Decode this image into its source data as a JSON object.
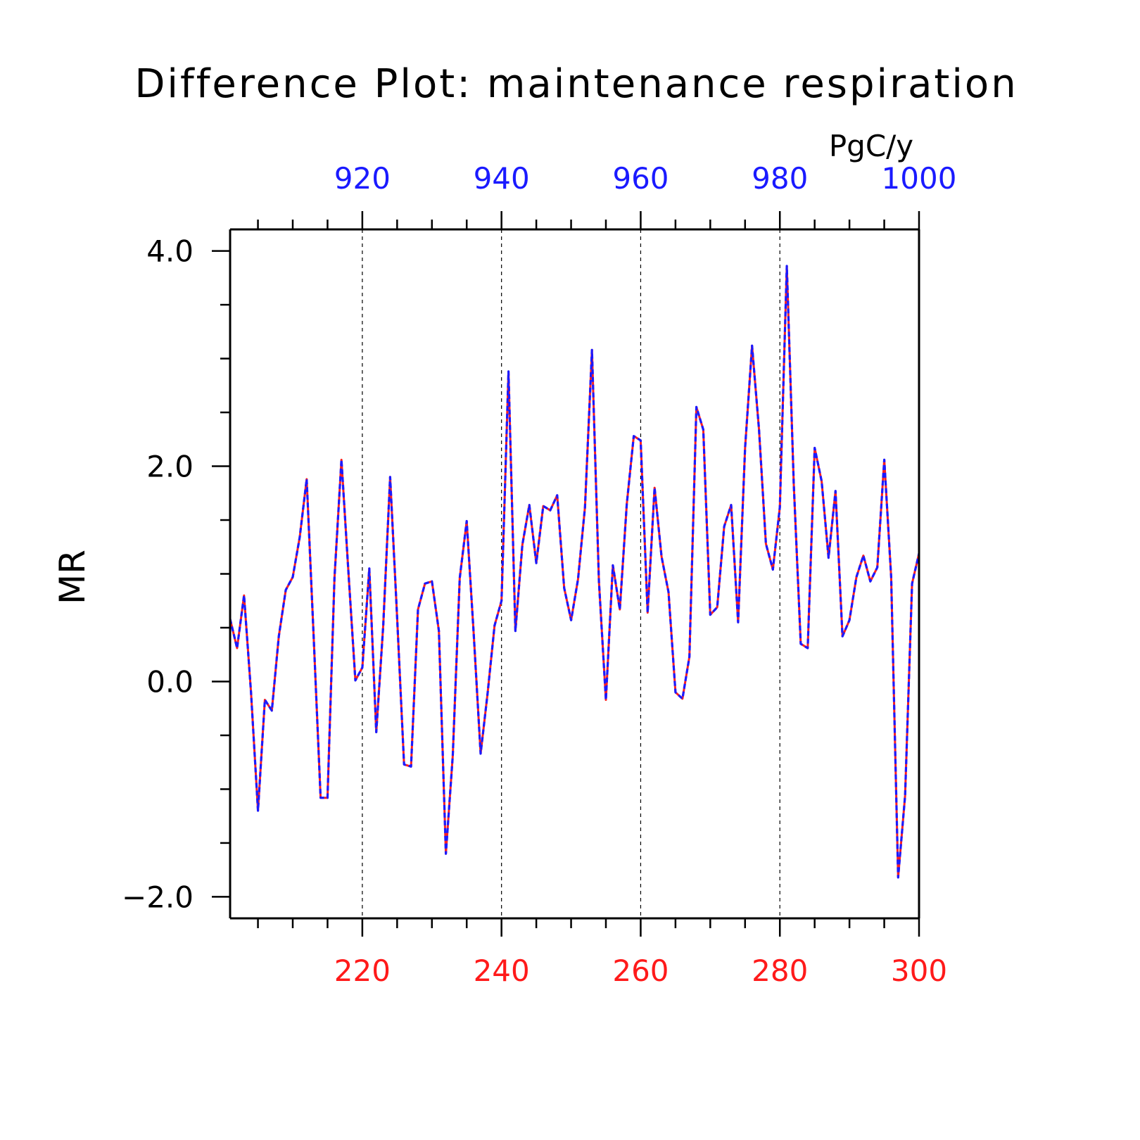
{
  "chart_data": {
    "type": "line",
    "title": "Difference Plot: maintenance respiration",
    "units": "PgC/y",
    "ylabel": "MR",
    "ylim": [
      -2.2,
      4.2
    ],
    "y_major_ticks": [
      -2.0,
      0.0,
      2.0,
      4.0
    ],
    "y_tick_labels": [
      "−2.0",
      "0.0",
      "2.0",
      "4.0"
    ],
    "y_minor_step": 0.5,
    "x_bottom": {
      "range": [
        201,
        300
      ],
      "ticks": [
        220,
        240,
        260,
        280,
        300
      ],
      "tick_labels": [
        "220",
        "240",
        "260",
        "280",
        "300"
      ],
      "minor_step": 5,
      "color": "#ff1a1a"
    },
    "x_top": {
      "range": [
        901,
        1000
      ],
      "ticks": [
        920,
        940,
        960,
        980,
        1000
      ],
      "tick_labels": [
        "920",
        "940",
        "960",
        "980",
        "1000"
      ],
      "minor_step": 5,
      "color": "#1a1aff"
    },
    "grid": "vertical dashed at major x ticks",
    "x": [
      201,
      202,
      203,
      204,
      205,
      206,
      207,
      208,
      209,
      210,
      211,
      212,
      213,
      214,
      215,
      216,
      217,
      218,
      219,
      220,
      221,
      222,
      223,
      224,
      225,
      226,
      227,
      228,
      229,
      230,
      231,
      232,
      233,
      234,
      235,
      236,
      237,
      238,
      239,
      240,
      241,
      242,
      243,
      244,
      245,
      246,
      247,
      248,
      249,
      250,
      251,
      252,
      253,
      254,
      255,
      256,
      257,
      258,
      259,
      260,
      261,
      262,
      263,
      264,
      265,
      266,
      267,
      268,
      269,
      270,
      271,
      272,
      273,
      274,
      275,
      276,
      277,
      278,
      279,
      280,
      281,
      282,
      283,
      284,
      285,
      286,
      287,
      288,
      289,
      290,
      291,
      292,
      293,
      294,
      295,
      296,
      297,
      298,
      299,
      300
    ],
    "series": [
      {
        "color": "#ff2020",
        "style": "solid",
        "values": [
          0.58,
          0.31,
          0.8,
          -0.1,
          -1.2,
          -0.17,
          -0.27,
          0.42,
          0.85,
          0.97,
          1.34,
          1.88,
          0.42,
          -1.08,
          -1.08,
          0.96,
          2.06,
          1.02,
          0.01,
          0.13,
          1.05,
          -0.47,
          0.52,
          1.9,
          0.6,
          -0.77,
          -0.79,
          0.67,
          0.91,
          0.93,
          0.47,
          -1.6,
          -0.69,
          0.96,
          1.49,
          0.45,
          -0.67,
          -0.11,
          0.52,
          0.75,
          2.88,
          0.47,
          1.27,
          1.64,
          1.1,
          1.63,
          1.59,
          1.73,
          0.87,
          0.57,
          0.95,
          1.62,
          3.08,
          0.93,
          -0.17,
          1.08,
          0.67,
          1.65,
          2.28,
          2.24,
          0.64,
          1.8,
          1.16,
          0.83,
          -0.1,
          -0.16,
          0.23,
          2.55,
          2.34,
          0.62,
          0.69,
          1.44,
          1.64,
          0.55,
          2.17,
          3.12,
          2.34,
          1.28,
          1.04,
          1.62,
          3.86,
          1.83,
          0.35,
          0.31,
          2.17,
          1.86,
          1.15,
          1.77,
          0.42,
          0.57,
          0.97,
          1.17,
          0.93,
          1.06,
          2.06,
          0.97,
          -1.82,
          -1.06,
          0.91,
          1.19
        ]
      },
      {
        "color": "#1a1aff",
        "style": "dashed",
        "values": [
          0.58,
          0.31,
          0.8,
          -0.1,
          -1.2,
          -0.17,
          -0.27,
          0.42,
          0.85,
          0.97,
          1.34,
          1.88,
          0.42,
          -1.08,
          -1.08,
          0.96,
          2.06,
          1.02,
          0.01,
          0.13,
          1.05,
          -0.47,
          0.52,
          1.9,
          0.6,
          -0.77,
          -0.79,
          0.67,
          0.91,
          0.93,
          0.47,
          -1.6,
          -0.69,
          0.96,
          1.49,
          0.45,
          -0.67,
          -0.11,
          0.52,
          0.75,
          2.88,
          0.47,
          1.27,
          1.64,
          1.1,
          1.63,
          1.59,
          1.73,
          0.87,
          0.57,
          0.95,
          1.62,
          3.08,
          0.93,
          -0.17,
          1.08,
          0.67,
          1.65,
          2.28,
          2.24,
          0.64,
          1.8,
          1.16,
          0.83,
          -0.1,
          -0.16,
          0.23,
          2.55,
          2.34,
          0.62,
          0.69,
          1.44,
          1.64,
          0.55,
          2.17,
          3.12,
          2.34,
          1.28,
          1.04,
          1.62,
          3.86,
          1.83,
          0.35,
          0.31,
          2.17,
          1.86,
          1.15,
          1.77,
          0.42,
          0.57,
          0.97,
          1.17,
          0.93,
          1.06,
          2.06,
          0.97,
          -1.82,
          -1.06,
          0.91,
          1.19
        ]
      }
    ]
  }
}
